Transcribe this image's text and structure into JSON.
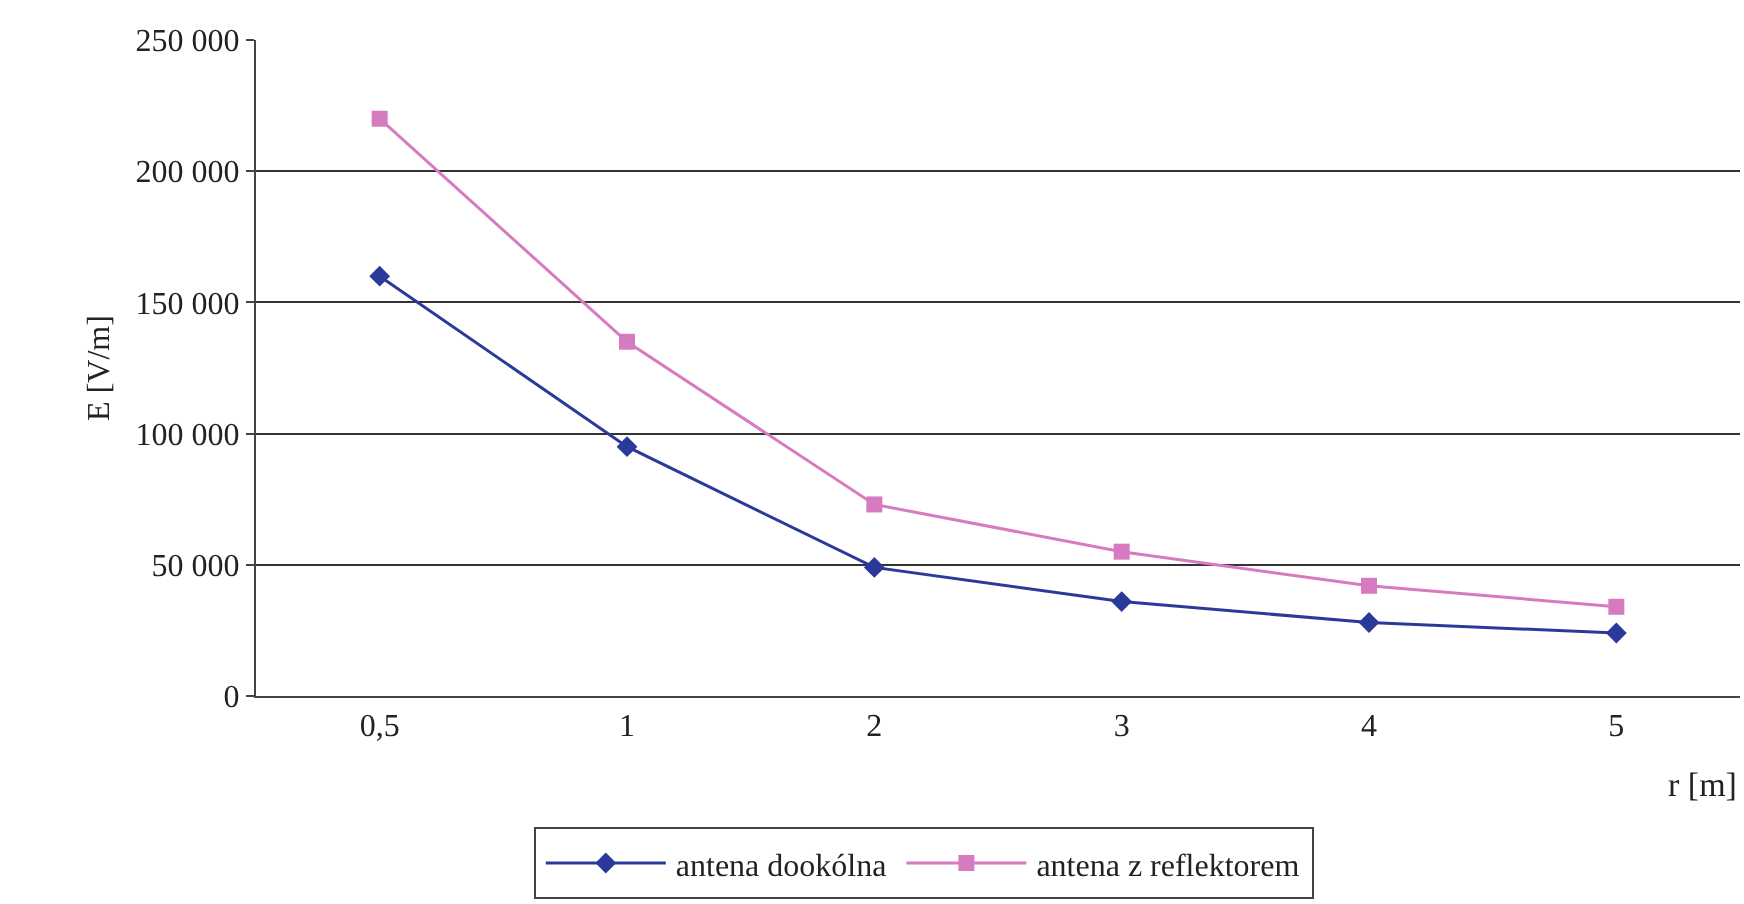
{
  "chart_data": {
    "type": "line",
    "xlabel": "r [m]",
    "ylabel": "E [V/m]",
    "categories": [
      "0,5",
      "1",
      "2",
      "3",
      "4",
      "5"
    ],
    "series": [
      {
        "name": "antena dookólna",
        "color": "#2b3a9a",
        "marker": "diamond",
        "values": [
          160000,
          95000,
          49000,
          36000,
          28000,
          24000
        ]
      },
      {
        "name": "antena z reflektorem",
        "color": "#d77bc0",
        "marker": "square",
        "values": [
          220000,
          135000,
          73000,
          55000,
          42000,
          34000
        ]
      }
    ],
    "ylim": [
      0,
      250000
    ],
    "yticks": [
      {
        "value": 0,
        "label": "0"
      },
      {
        "value": 50000,
        "label": "50 000"
      },
      {
        "value": 100000,
        "label": "100 000"
      },
      {
        "value": 150000,
        "label": "150 000"
      },
      {
        "value": 200000,
        "label": "200 000"
      },
      {
        "value": 250000,
        "label": "250 000"
      }
    ],
    "grid": "y",
    "legend": "bottom"
  }
}
